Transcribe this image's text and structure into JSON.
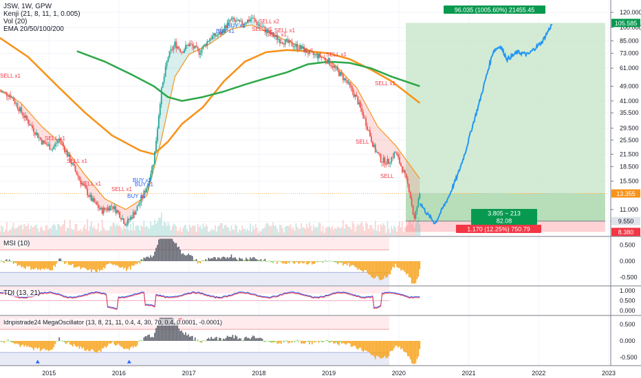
{
  "legend": {
    "line1": "JSW, 1W, GPW",
    "line2": "Kenji (21, 8, 11, 1, 0.005)",
    "line3": "Vol (20)",
    "line4": "EMA 20/50/100/200"
  },
  "panes": {
    "msi": "MSI (10)",
    "tdi": "TDI (13, 21)",
    "mega": "Idnpistrade24 MegaOscillator (13, 8, 21, 11, 0.4, 4, 30, 70, 0.4, 0.0001, -0.0001)"
  },
  "colors": {
    "up": "#26a69a",
    "down": "#ef5350",
    "ema_orange": "#f7931a",
    "ema_green": "#2ea84a",
    "projection": "#2196f3",
    "profit_zone": "#c8e6c9",
    "loss_zone": "#ffcdd2"
  },
  "projection_labels": {
    "target": "96.035 (1005.60%) 21455.45",
    "reward": "3.805 ~ 213",
    "reward2": "82.08",
    "stop": "1.170 (12.25%) 750.79"
  },
  "price_badges": {
    "top": "105.585",
    "current": "13.355",
    "entry": "9.550",
    "stop": "8.380"
  },
  "signals": {
    "sell": [
      "SELL x1",
      "SELL x1",
      "SELL x1",
      "SELL x1",
      "SELL x1",
      "SELL x2",
      "SELL x1",
      "SELL x1",
      "SELL x1",
      "SELL",
      "SELL x1",
      "SELL x1",
      "SELL"
    ],
    "buy": [
      "BUY x1",
      "BUY x1",
      "BUY x1",
      "BUY x1",
      "BUY x1"
    ]
  },
  "chart_data": {
    "type": "candlestick",
    "symbol": "JSW",
    "interval": "1W",
    "exchange": "GPW",
    "price_scale": "log",
    "price_ticks": [
      "120.000",
      "100.000",
      "85.000",
      "73.000",
      "61.000",
      "49.000",
      "41.000",
      "35.500",
      "29.500",
      "25.500",
      "21.500",
      "18.500",
      "15.500",
      "11.000",
      "9.500"
    ],
    "x_ticks": [
      "2015",
      "2016",
      "2017",
      "2018",
      "2019",
      "2020",
      "2021",
      "2022",
      "2023"
    ],
    "price_series": [
      {
        "t": 2014.3,
        "v": 46
      },
      {
        "t": 2014.45,
        "v": 44
      },
      {
        "t": 2014.6,
        "v": 36
      },
      {
        "t": 2014.75,
        "v": 30
      },
      {
        "t": 2014.9,
        "v": 25
      },
      {
        "t": 2015.05,
        "v": 23
      },
      {
        "t": 2015.15,
        "v": 26
      },
      {
        "t": 2015.3,
        "v": 20
      },
      {
        "t": 2015.45,
        "v": 15.5
      },
      {
        "t": 2015.6,
        "v": 12.5
      },
      {
        "t": 2015.75,
        "v": 10.8
      },
      {
        "t": 2015.9,
        "v": 11.5
      },
      {
        "t": 2016.0,
        "v": 10.5
      },
      {
        "t": 2016.1,
        "v": 9.2
      },
      {
        "t": 2016.25,
        "v": 11
      },
      {
        "t": 2016.4,
        "v": 14.5
      },
      {
        "t": 2016.5,
        "v": 20
      },
      {
        "t": 2016.6,
        "v": 45
      },
      {
        "t": 2016.7,
        "v": 70
      },
      {
        "t": 2016.8,
        "v": 82
      },
      {
        "t": 2016.9,
        "v": 75
      },
      {
        "t": 2017.0,
        "v": 82
      },
      {
        "t": 2017.15,
        "v": 74
      },
      {
        "t": 2017.3,
        "v": 88
      },
      {
        "t": 2017.45,
        "v": 93
      },
      {
        "t": 2017.6,
        "v": 110
      },
      {
        "t": 2017.75,
        "v": 104
      },
      {
        "t": 2017.9,
        "v": 112
      },
      {
        "t": 2018.0,
        "v": 103
      },
      {
        "t": 2018.15,
        "v": 93
      },
      {
        "t": 2018.3,
        "v": 86
      },
      {
        "t": 2018.45,
        "v": 82
      },
      {
        "t": 2018.6,
        "v": 78
      },
      {
        "t": 2018.75,
        "v": 72
      },
      {
        "t": 2018.9,
        "v": 70
      },
      {
        "t": 2019.0,
        "v": 66
      },
      {
        "t": 2019.1,
        "v": 60
      },
      {
        "t": 2019.25,
        "v": 52
      },
      {
        "t": 2019.4,
        "v": 42
      },
      {
        "t": 2019.55,
        "v": 30
      },
      {
        "t": 2019.65,
        "v": 23
      },
      {
        "t": 2019.75,
        "v": 20
      },
      {
        "t": 2019.85,
        "v": 19.5
      },
      {
        "t": 2019.95,
        "v": 22
      },
      {
        "t": 2020.05,
        "v": 18
      },
      {
        "t": 2020.15,
        "v": 14
      },
      {
        "t": 2020.22,
        "v": 9.6
      },
      {
        "t": 2020.3,
        "v": 13.3
      }
    ],
    "projection_series": [
      {
        "t": 2020.3,
        "v": 12
      },
      {
        "t": 2020.4,
        "v": 10.5
      },
      {
        "t": 2020.52,
        "v": 9.3
      },
      {
        "t": 2020.62,
        "v": 11
      },
      {
        "t": 2020.72,
        "v": 13
      },
      {
        "t": 2020.85,
        "v": 17
      },
      {
        "t": 2020.95,
        "v": 22
      },
      {
        "t": 2021.05,
        "v": 30
      },
      {
        "t": 2021.15,
        "v": 40
      },
      {
        "t": 2021.25,
        "v": 55
      },
      {
        "t": 2021.35,
        "v": 75
      },
      {
        "t": 2021.45,
        "v": 80
      },
      {
        "t": 2021.55,
        "v": 68
      },
      {
        "t": 2021.7,
        "v": 74
      },
      {
        "t": 2021.85,
        "v": 72
      },
      {
        "t": 2021.95,
        "v": 78
      },
      {
        "t": 2022.05,
        "v": 84
      },
      {
        "t": 2022.2,
        "v": 105.585
      }
    ],
    "ema_fast": [
      {
        "t": 2014.3,
        "v": 47
      },
      {
        "t": 2014.6,
        "v": 40
      },
      {
        "t": 2014.9,
        "v": 30
      },
      {
        "t": 2015.2,
        "v": 24
      },
      {
        "t": 2015.5,
        "v": 17
      },
      {
        "t": 2015.8,
        "v": 12.5
      },
      {
        "t": 2016.1,
        "v": 11
      },
      {
        "t": 2016.4,
        "v": 13
      },
      {
        "t": 2016.6,
        "v": 25
      },
      {
        "t": 2016.8,
        "v": 55
      },
      {
        "t": 2017.0,
        "v": 72
      },
      {
        "t": 2017.3,
        "v": 82
      },
      {
        "t": 2017.6,
        "v": 98
      },
      {
        "t": 2017.9,
        "v": 103
      },
      {
        "t": 2018.2,
        "v": 92
      },
      {
        "t": 2018.5,
        "v": 82
      },
      {
        "t": 2018.8,
        "v": 74
      },
      {
        "t": 2019.1,
        "v": 63
      },
      {
        "t": 2019.4,
        "v": 48
      },
      {
        "t": 2019.7,
        "v": 30
      },
      {
        "t": 2019.95,
        "v": 24
      },
      {
        "t": 2020.3,
        "v": 16
      }
    ],
    "ema_mid": [
      {
        "t": 2014.3,
        "v": 88
      },
      {
        "t": 2014.7,
        "v": 70
      },
      {
        "t": 2015.1,
        "v": 50
      },
      {
        "t": 2015.5,
        "v": 36
      },
      {
        "t": 2015.9,
        "v": 27
      },
      {
        "t": 2016.3,
        "v": 22.5
      },
      {
        "t": 2016.5,
        "v": 21.5
      },
      {
        "t": 2016.7,
        "v": 25
      },
      {
        "t": 2016.9,
        "v": 31
      },
      {
        "t": 2017.2,
        "v": 38
      },
      {
        "t": 2017.5,
        "v": 52
      },
      {
        "t": 2017.8,
        "v": 66
      },
      {
        "t": 2018.1,
        "v": 74
      },
      {
        "t": 2018.4,
        "v": 76
      },
      {
        "t": 2018.7,
        "v": 75
      },
      {
        "t": 2019.0,
        "v": 73
      },
      {
        "t": 2019.3,
        "v": 68
      },
      {
        "t": 2019.6,
        "v": 60
      },
      {
        "t": 2019.9,
        "v": 52
      },
      {
        "t": 2020.3,
        "v": 40
      }
    ],
    "ema_slow": [
      {
        "t": 2015.4,
        "v": 75
      },
      {
        "t": 2015.8,
        "v": 66
      },
      {
        "t": 2016.2,
        "v": 56
      },
      {
        "t": 2016.5,
        "v": 49
      },
      {
        "t": 2016.7,
        "v": 43
      },
      {
        "t": 2016.9,
        "v": 41
      },
      {
        "t": 2017.2,
        "v": 43
      },
      {
        "t": 2017.5,
        "v": 46
      },
      {
        "t": 2017.8,
        "v": 50
      },
      {
        "t": 2018.1,
        "v": 54
      },
      {
        "t": 2018.4,
        "v": 58
      },
      {
        "t": 2018.7,
        "v": 64
      },
      {
        "t": 2019.0,
        "v": 66
      },
      {
        "t": 2019.3,
        "v": 65
      },
      {
        "t": 2019.6,
        "v": 61
      },
      {
        "t": 2019.9,
        "v": 55
      },
      {
        "t": 2020.3,
        "v": 49
      }
    ],
    "projection_box": {
      "entry": 9.55,
      "target": 105.585,
      "stop": 8.38,
      "current": 13.355,
      "start": 2020.1,
      "end": 2022.95
    },
    "oscillators": [
      {
        "name": "MSI (10)",
        "ticks": [
          "0.500",
          "0.000",
          "-0.500"
        ],
        "ylim": [
          -0.75,
          0.75
        ]
      },
      {
        "name": "TDI (13, 21)",
        "ticks": [
          "1.000",
          "0.500",
          "0.000"
        ],
        "ylim": [
          -0.2,
          1.2
        ]
      },
      {
        "name": "Idnpistrade24 MegaOscillator",
        "ticks": [
          "0.500",
          "0.000",
          "-0.500"
        ],
        "ylim": [
          -0.75,
          0.75
        ]
      }
    ]
  }
}
